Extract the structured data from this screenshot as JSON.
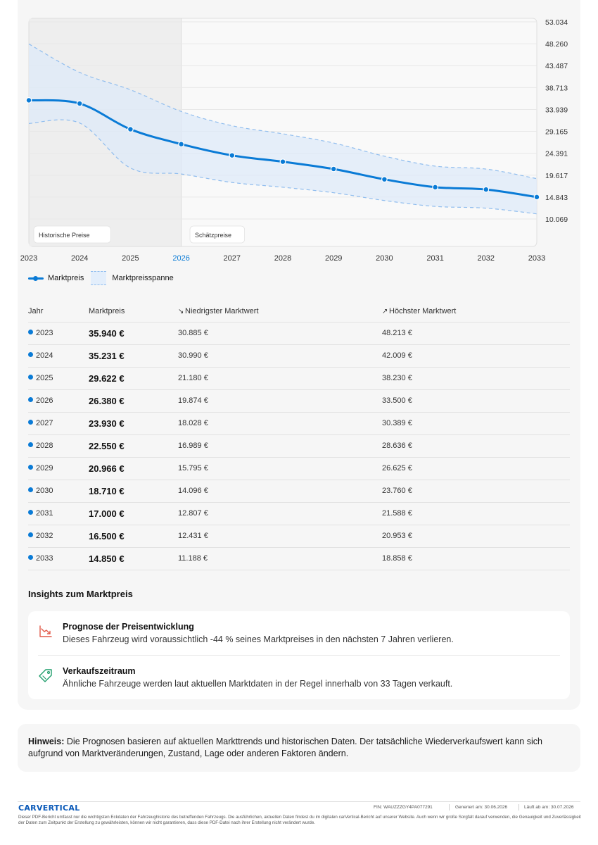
{
  "chart_data": {
    "type": "line",
    "x": [
      2023,
      2024,
      2025,
      2026,
      2027,
      2028,
      2029,
      2030,
      2031,
      2032,
      2033
    ],
    "series": [
      {
        "name": "Marktpreis",
        "values": [
          35940,
          35231,
          29622,
          26380,
          23930,
          22550,
          20966,
          18710,
          17000,
          16500,
          14850
        ]
      },
      {
        "name": "Marktpreisspanne",
        "low": [
          30885,
          30990,
          21180,
          19874,
          18028,
          16989,
          15795,
          14096,
          12807,
          12431,
          11188
        ],
        "high": [
          48213,
          42009,
          38230,
          33500,
          30389,
          28636,
          26625,
          23760,
          21588,
          20953,
          18858
        ]
      }
    ],
    "y_ticks": [
      "53.034",
      "48.260",
      "43.487",
      "38.713",
      "33.939",
      "29.165",
      "24.391",
      "19.617",
      "14.843",
      "10.069"
    ],
    "x_tick_labels": [
      "2023",
      "2024",
      "2025",
      "2026",
      "2027",
      "2028",
      "2029",
      "2030",
      "2031",
      "2032",
      "2033"
    ],
    "highlight_x": "2026",
    "regions": {
      "historical_label": "Historische Preise",
      "forecast_label": "Schätzpreise"
    },
    "grid": true,
    "legend_position": "bottom-left"
  },
  "legend": {
    "line_label": "Marktpreis",
    "band_label": "Marktpreisspanne"
  },
  "colors": {
    "accent": "#0a7bd6",
    "band": "#e3eefb",
    "card": "#f6f6f6"
  },
  "table": {
    "headers": {
      "year": "Jahr",
      "price": "Marktpreis",
      "low": "Niedrigster Marktwert",
      "high": "Höchster Marktwert"
    },
    "rows": [
      {
        "year": "2023",
        "price": "35.940 €",
        "low": "30.885 €",
        "high": "48.213 €"
      },
      {
        "year": "2024",
        "price": "35.231 €",
        "low": "30.990 €",
        "high": "42.009 €"
      },
      {
        "year": "2025",
        "price": "29.622 €",
        "low": "21.180 €",
        "high": "38.230 €"
      },
      {
        "year": "2026",
        "price": "26.380 €",
        "low": "19.874 €",
        "high": "33.500 €"
      },
      {
        "year": "2027",
        "price": "23.930 €",
        "low": "18.028 €",
        "high": "30.389 €"
      },
      {
        "year": "2028",
        "price": "22.550 €",
        "low": "16.989 €",
        "high": "28.636 €"
      },
      {
        "year": "2029",
        "price": "20.966 €",
        "low": "15.795 €",
        "high": "26.625 €"
      },
      {
        "year": "2030",
        "price": "18.710 €",
        "low": "14.096 €",
        "high": "23.760 €"
      },
      {
        "year": "2031",
        "price": "17.000 €",
        "low": "12.807 €",
        "high": "21.588 €"
      },
      {
        "year": "2032",
        "price": "16.500 €",
        "low": "12.431 €",
        "high": "20.953 €"
      },
      {
        "year": "2033",
        "price": "14.850 €",
        "low": "11.188 €",
        "high": "18.858 €"
      }
    ]
  },
  "insights": {
    "title": "Insights zum Marktpreis",
    "forecast": {
      "title": "Prognose der Preisentwicklung",
      "text": "Dieses Fahrzeug wird voraussichtlich -44 % seines Marktpreises in den nächsten 7 Jahren verlieren.",
      "icon": "trending-down-icon"
    },
    "sale": {
      "title": "Verkaufszeitraum",
      "text": "Ähnliche Fahrzeuge werden laut aktuellen Marktdaten in der Regel innerhalb von 33 Tagen verkauft.",
      "icon": "price-tag-icon"
    }
  },
  "note": {
    "label": "Hinweis:",
    "text": "Die Prognosen basieren auf aktuellen Markttrends und historischen Daten. Der tatsächliche Wiederverkaufswert kann sich aufgrund von Marktveränderungen, Zustand, Lage oder anderen Faktoren ändern."
  },
  "footer": {
    "brand": "CARVERTICAL",
    "fin": "FIN: WAUZZZGY4PA077291",
    "generated": "Generiert am: 30.06.2026",
    "valid": "Läuft ab am: 30.07.2026",
    "disclaimer": "Dieser PDF-Bericht umfasst nur die wichtigsten Eckdaten der Fahrzeughistorie des betreffenden Fahrzeugs. Die ausführlichen, aktuellen Daten findest du im digitalen carVertical-Bericht auf unserer Website. Auch wenn wir große Sorgfalt darauf verwenden, die Genauigkeit und Zuverlässigkeit der Daten zum Zeitpunkt der Erstellung zu gewährleisten, können wir nicht garantieren, dass diese PDF-Datei nach ihrer Erstellung nicht verändert wurde."
  }
}
